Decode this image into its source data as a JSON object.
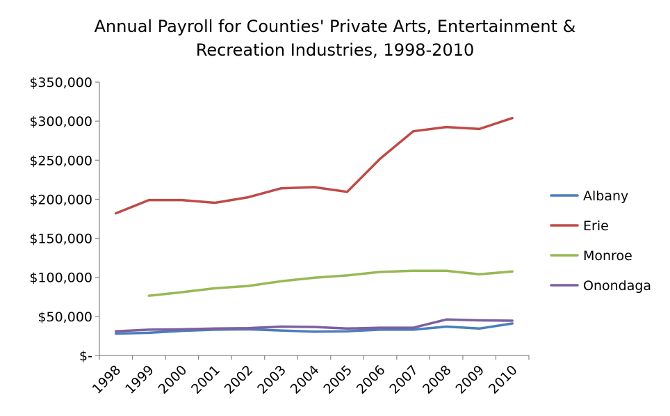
{
  "chart_data": {
    "type": "line",
    "title": [
      "Annual Payroll for Counties' Private Arts, Entertainment &",
      "Recreation Industries, 1998-2010"
    ],
    "xlabel": "",
    "ylabel": "",
    "categories": [
      "1998",
      "1999",
      "2000",
      "2001",
      "2002",
      "2003",
      "2004",
      "2005",
      "2006",
      "2007",
      "2008",
      "2009",
      "2010"
    ],
    "ylim": [
      0,
      350000
    ],
    "y_ticks": [
      0,
      50000,
      100000,
      150000,
      200000,
      250000,
      300000,
      350000
    ],
    "y_tick_labels": [
      "$-",
      "$50,000",
      "$100,000",
      "$150,000",
      "$200,000",
      "$250,000",
      "$300,000",
      "$350,000"
    ],
    "grid": false,
    "legend_position": "right",
    "series": [
      {
        "name": "Albany",
        "color": "#4a7ebb",
        "values": [
          28000,
          29000,
          31500,
          33000,
          33500,
          32000,
          30500,
          31000,
          33000,
          33000,
          37000,
          34500,
          41000
        ]
      },
      {
        "name": "Erie",
        "color": "#be4b48",
        "values": [
          182000,
          199000,
          199000,
          195500,
          202500,
          214000,
          215500,
          209500,
          252000,
          287000,
          292500,
          290000,
          304000
        ]
      },
      {
        "name": "Monroe",
        "color": "#98b954",
        "values": [
          null,
          76500,
          81000,
          86000,
          89000,
          95000,
          99500,
          102500,
          107000,
          108500,
          108500,
          104000,
          107500
        ]
      },
      {
        "name": "Onondaga",
        "color": "#7d60a0",
        "values": [
          31000,
          33000,
          33500,
          34500,
          35000,
          37000,
          36500,
          34500,
          35500,
          35500,
          46000,
          45000,
          44500
        ]
      }
    ]
  }
}
